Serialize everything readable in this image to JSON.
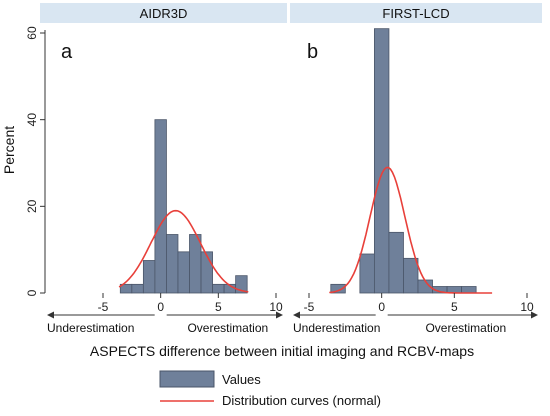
{
  "chart_data": {
    "type": "bar",
    "ylabel": "Percent",
    "xlabel": "ASPECTS difference between initial imaging and RCBV-maps",
    "xlim": [
      -5,
      10
    ],
    "ylim": [
      0,
      60
    ],
    "xticks": [
      "-5",
      "0",
      "5",
      "10"
    ],
    "yticks": [
      "0",
      "20",
      "40",
      "60"
    ],
    "grid": false,
    "annotations": {
      "left": "Underestimation",
      "right": "Overestimation"
    },
    "legend": {
      "placement": "bottom",
      "entries": [
        {
          "label": "Values",
          "color": "#6f809a",
          "kind": "bar"
        },
        {
          "label": "Distribution curves (normal)",
          "color": "#e8403a",
          "kind": "line"
        }
      ]
    },
    "panels": [
      {
        "strip": "AIDR3D",
        "letter": "a",
        "bins": [
          {
            "x0": -3.5,
            "x1": -2.5,
            "value": 2
          },
          {
            "x0": -2.5,
            "x1": -1.5,
            "value": 2
          },
          {
            "x0": -1.5,
            "x1": -0.5,
            "value": 7.5
          },
          {
            "x0": -0.5,
            "x1": 0.5,
            "value": 40
          },
          {
            "x0": 0.5,
            "x1": 1.5,
            "value": 13.5
          },
          {
            "x0": 1.5,
            "x1": 2.5,
            "value": 9.5
          },
          {
            "x0": 2.5,
            "x1": 3.5,
            "value": 13.5
          },
          {
            "x0": 3.5,
            "x1": 4.5,
            "value": 9.5
          },
          {
            "x0": 4.5,
            "x1": 5.5,
            "value": 2
          },
          {
            "x0": 5.5,
            "x1": 6.5,
            "value": 2
          },
          {
            "x0": 6.5,
            "x1": 7.5,
            "value": 4
          }
        ],
        "normal_curve": {
          "mean": 1.3,
          "peak": 19,
          "sd": 2.15,
          "x_range": [
            -3.6,
            7.6
          ]
        }
      },
      {
        "strip": "FIRST-LCD",
        "letter": "b",
        "bins": [
          {
            "x0": -3.5,
            "x1": -2.5,
            "value": 2
          },
          {
            "x0": -1.5,
            "x1": -0.5,
            "value": 9
          },
          {
            "x0": -0.5,
            "x1": 0.5,
            "value": 61
          },
          {
            "x0": 0.5,
            "x1": 1.5,
            "value": 14
          },
          {
            "x0": 1.5,
            "x1": 2.5,
            "value": 8
          },
          {
            "x0": 2.5,
            "x1": 3.5,
            "value": 3
          },
          {
            "x0": 3.5,
            "x1": 4.5,
            "value": 1.5
          },
          {
            "x0": 4.5,
            "x1": 5.5,
            "value": 1.5
          },
          {
            "x0": 5.5,
            "x1": 6.5,
            "value": 1.5
          }
        ],
        "normal_curve": {
          "mean": 0.4,
          "peak": 29,
          "sd": 1.2,
          "x_range": [
            -3.6,
            7.6
          ]
        }
      }
    ],
    "colors": {
      "bar_fill": "#6f809a",
      "bar_stroke": "#4a5568",
      "curve": "#e8403a",
      "strip_bg": "#d9e6f2"
    }
  }
}
